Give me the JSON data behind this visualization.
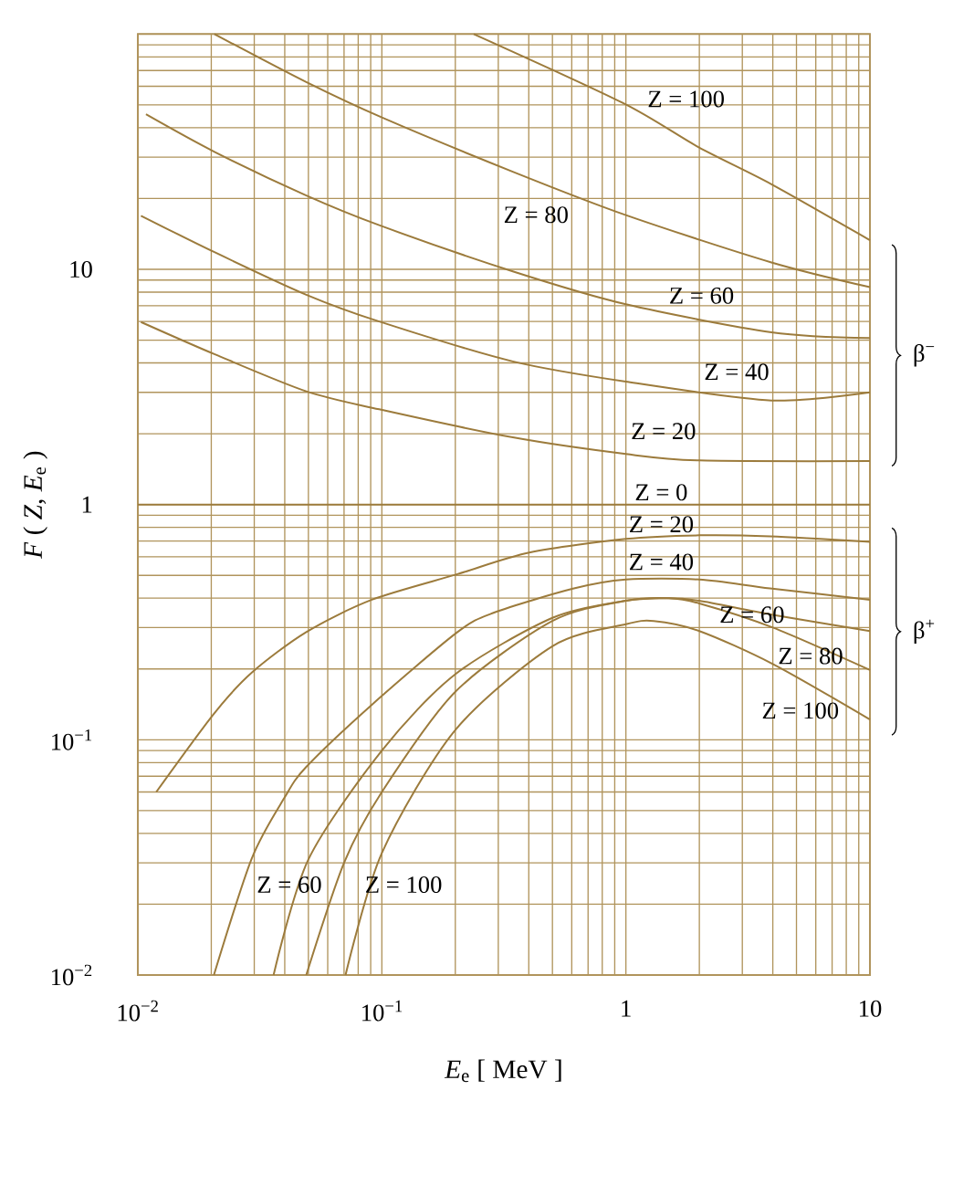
{
  "chart_data": {
    "type": "line",
    "xlabel": "*E*$_{e}$ [ MeV ]",
    "ylabel": "*F* ( *Z*, *E*$_{e}$ )",
    "log": "xy",
    "grid": true,
    "xlim": [
      0.01,
      10
    ],
    "ylim": [
      0.01,
      100
    ],
    "xticks": [
      {
        "value": 0.01,
        "label": "10$^{−2}$"
      },
      {
        "value": 0.02,
        "label": null
      },
      {
        "value": 0.03,
        "label": null
      },
      {
        "value": 0.04,
        "label": null
      },
      {
        "value": 0.05,
        "label": null
      },
      {
        "value": 0.06,
        "label": null
      },
      {
        "value": 0.07,
        "label": null
      },
      {
        "value": 0.08,
        "label": null
      },
      {
        "value": 0.09,
        "label": null
      },
      {
        "value": 0.1,
        "label": "10$^{−1}$"
      },
      {
        "value": 0.2,
        "label": null
      },
      {
        "value": 0.3,
        "label": null
      },
      {
        "value": 0.4,
        "label": null
      },
      {
        "value": 0.5,
        "label": null
      },
      {
        "value": 0.6,
        "label": null
      },
      {
        "value": 0.7,
        "label": null
      },
      {
        "value": 0.8,
        "label": null
      },
      {
        "value": 0.9,
        "label": null
      },
      1,
      {
        "value": 2,
        "label": null
      },
      {
        "value": 3,
        "label": null
      },
      {
        "value": 4,
        "label": null
      },
      {
        "value": 5,
        "label": null
      },
      {
        "value": 6,
        "label": null
      },
      {
        "value": 7,
        "label": null
      },
      {
        "value": 8,
        "label": null
      },
      {
        "value": 9,
        "label": null
      },
      10
    ],
    "yticks": [
      {
        "value": 0.01,
        "label": "10$^{−2}$"
      },
      {
        "value": 0.02,
        "label": null
      },
      {
        "value": 0.03,
        "label": null
      },
      {
        "value": 0.04,
        "label": null
      },
      {
        "value": 0.05,
        "label": null
      },
      {
        "value": 0.06,
        "label": null
      },
      {
        "value": 0.07,
        "label": null
      },
      {
        "value": 0.08,
        "label": null
      },
      {
        "value": 0.09,
        "label": null
      },
      {
        "value": 0.1,
        "label": "10$^{−1}$"
      },
      {
        "value": 0.2,
        "label": null
      },
      {
        "value": 0.3,
        "label": null
      },
      {
        "value": 0.4,
        "label": null
      },
      {
        "value": 0.5,
        "label": null
      },
      {
        "value": 0.6,
        "label": null
      },
      {
        "value": 0.7,
        "label": null
      },
      {
        "value": 0.8,
        "label": null
      },
      {
        "value": 0.9,
        "label": null
      },
      1,
      {
        "value": 2,
        "label": null
      },
      {
        "value": 3,
        "label": null
      },
      {
        "value": 4,
        "label": null
      },
      {
        "value": 5,
        "label": null
      },
      {
        "value": 6,
        "label": null
      },
      {
        "value": 7,
        "label": null
      },
      {
        "value": 8,
        "label": null
      },
      {
        "value": 9,
        "label": null
      },
      10,
      {
        "value": 20,
        "label": null
      },
      {
        "value": 30,
        "label": null
      },
      {
        "value": 40,
        "label": null
      },
      {
        "value": 50,
        "label": null
      },
      {
        "value": 60,
        "label": null
      },
      {
        "value": 70,
        "label": null
      },
      {
        "value": 80,
        "label": null
      },
      {
        "value": 90,
        "label": null
      },
      {
        "value": 100,
        "label": null
      }
    ],
    "series": [
      {
        "color": "#9c7b3c",
        "x": [
          0.238,
          0.97,
          1.99,
          3.95,
          10
        ],
        "values": [
          100,
          51,
          33,
          23,
          13.3
        ]
      },
      {
        "color": "#9c7b3c",
        "x": [
          0.0206,
          0.049,
          0.101,
          0.344,
          1,
          3.95,
          10
        ],
        "values": [
          100,
          62.5,
          44,
          26,
          17,
          10.7,
          8.4
        ]
      },
      {
        "color": "#9c7b3c",
        "x": [
          0.0108,
          0.0207,
          0.049,
          0.0975,
          0.344,
          1,
          3.95,
          10
        ],
        "values": [
          45.6,
          31.5,
          20.6,
          15.4,
          9.8,
          7.1,
          5.4,
          5.1
        ]
      },
      {
        "color": "#9c7b3c",
        "x": [
          0.0103,
          0.0207,
          0.049,
          0.0975,
          0.344,
          1,
          3.95,
          10
        ],
        "values": [
          16.9,
          11.8,
          7.8,
          6.0,
          4.06,
          3.33,
          2.77,
          3.0
        ]
      },
      {
        "color": "#9c7b3c",
        "x": [
          0.0103,
          0.0207,
          0.049,
          0.0975,
          0.344,
          1,
          2,
          10
        ],
        "values": [
          5.97,
          4.35,
          3.03,
          2.54,
          1.93,
          1.64,
          1.54,
          1.53
        ]
      },
      {
        "color": "#9c7b3c",
        "x": [
          0.01,
          10
        ],
        "values": [
          1,
          1
        ]
      },
      {
        "color": "#9c7b3c",
        "x": [
          0.0119,
          0.0205,
          0.0293,
          0.049,
          0.091,
          0.204,
          0.402,
          1,
          2,
          3.9,
          10
        ],
        "values": [
          0.06,
          0.129,
          0.193,
          0.287,
          0.394,
          0.506,
          0.625,
          0.714,
          0.74,
          0.733,
          0.695
        ]
      },
      {
        "color": "#9c7b3c",
        "x": [
          0.0205,
          0.0293,
          0.0399,
          0.049,
          0.091,
          0.204,
          0.29,
          0.607,
          1,
          2,
          3.9,
          10
        ],
        "values": [
          0.01,
          0.0313,
          0.0567,
          0.0767,
          0.141,
          0.287,
          0.348,
          0.439,
          0.48,
          0.48,
          0.44,
          0.394
        ]
      },
      {
        "color": "#9c7b3c",
        "x": [
          0.036,
          0.05,
          0.1,
          0.2,
          0.5,
          1,
          1.5,
          2,
          4,
          10
        ],
        "values": [
          0.01,
          0.031,
          0.09,
          0.19,
          0.33,
          0.39,
          0.4,
          0.39,
          0.34,
          0.29
        ]
      },
      {
        "color": "#9c7b3c",
        "x": [
          0.049,
          0.07,
          0.1,
          0.2,
          0.5,
          1,
          1.5,
          2,
          4,
          10
        ],
        "values": [
          0.01,
          0.03,
          0.06,
          0.16,
          0.32,
          0.39,
          0.4,
          0.38,
          0.3,
          0.198
        ]
      },
      {
        "color": "#9c7b3c",
        "x": [
          0.071,
          0.1,
          0.2,
          0.5,
          1,
          1.3,
          2,
          4,
          10
        ],
        "values": [
          0.01,
          0.033,
          0.11,
          0.25,
          0.31,
          0.32,
          0.29,
          0.21,
          0.122
        ]
      }
    ],
    "annotations": [
      "Z = 100",
      "Z = 80",
      "Z = 60",
      "Z = 40",
      "Z = 20",
      "Z = 0",
      "Z = 20",
      "Z = 40",
      "Z = 60",
      "Z = 80",
      "Z = 100",
      "Z = 60",
      "Z = 100",
      "β$^{−}$",
      "β$^{+}$"
    ]
  }
}
